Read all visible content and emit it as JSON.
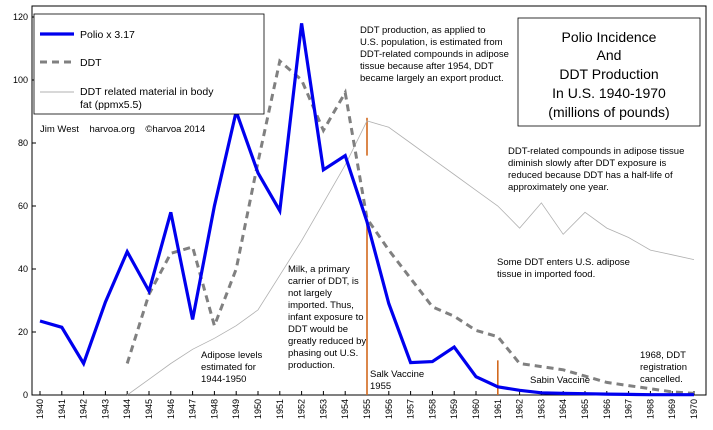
{
  "chart_data": {
    "type": "line",
    "title_lines": [
      "Polio Incidence",
      "And",
      "DDT Production",
      "In U.S. 1940-1970",
      "(millions of pounds)"
    ],
    "x": [
      1940,
      1941,
      1942,
      1943,
      1944,
      1945,
      1946,
      1947,
      1948,
      1949,
      1950,
      1951,
      1952,
      1953,
      1954,
      1955,
      1956,
      1957,
      1958,
      1959,
      1960,
      1961,
      1962,
      1963,
      1964,
      1965,
      1966,
      1967,
      1968,
      1969,
      1970
    ],
    "x_tick_labels": [
      "1940",
      "1941",
      "1942",
      "1943",
      "1944",
      "1945",
      "1946",
      "1947",
      "1948",
      "1949",
      "1950",
      "1951",
      "1952",
      "1953",
      "1954",
      "1955",
      "1956",
      "1957",
      "1958",
      "1959",
      "1960",
      "1961",
      "1962",
      "1963",
      "1964",
      "1965",
      "1966",
      "1967",
      "1968",
      "1969",
      "1970"
    ],
    "ylim": [
      0,
      120
    ],
    "y_ticks": [
      0,
      20,
      40,
      60,
      80,
      100,
      120
    ],
    "y_tick_labels": [
      "0",
      "20",
      "40",
      "60",
      "80",
      "100",
      "120"
    ],
    "series": [
      {
        "name": "Polio x 3.17",
        "color": "#0000ee",
        "style": "solid-thick",
        "x": [
          1940,
          1941,
          1942,
          1943,
          1944,
          1945,
          1946,
          1947,
          1948,
          1949,
          1950,
          1951,
          1952,
          1953,
          1954,
          1955,
          1956,
          1957,
          1958,
          1959,
          1960,
          1961,
          1962,
          1963,
          1964,
          1965,
          1966,
          1967,
          1968,
          1969,
          1970
        ],
        "values": [
          23.5,
          21.5,
          10,
          29.5,
          45.5,
          33,
          58,
          24,
          60,
          90,
          70.5,
          58.5,
          118,
          71.5,
          76,
          55,
          29,
          10.3,
          10.6,
          15.2,
          5.8,
          2.6,
          1.5,
          0.7,
          0.5,
          0.4,
          0.3,
          0.2,
          0.1,
          0.1,
          0.1
        ]
      },
      {
        "name": "DDT",
        "color": "#808080",
        "style": "dashed",
        "x": [
          1944,
          1945,
          1946,
          1947,
          1948,
          1949,
          1950,
          1951,
          1952,
          1953,
          1954,
          1955,
          1956,
          1957,
          1958,
          1959,
          1960,
          1961,
          1962,
          1963,
          1964,
          1965,
          1966,
          1967,
          1968,
          1969,
          1970
        ],
        "values": [
          10,
          32,
          45,
          47,
          22,
          40,
          74,
          106,
          100,
          84,
          96,
          56,
          46,
          37,
          28,
          25,
          20.5,
          18.5,
          10,
          9,
          8,
          6,
          4,
          3,
          2,
          1,
          0.5
        ]
      },
      {
        "name": "DDT related material in body fat (ppmx5.5)",
        "color": "#b0b0b0",
        "style": "thin",
        "x": [
          1944,
          1945,
          1946,
          1947,
          1948,
          1949,
          1950,
          1951,
          1952,
          1953,
          1954,
          1955,
          1956,
          1957,
          1958,
          1959,
          1960,
          1961,
          1962,
          1963,
          1964,
          1965,
          1966,
          1967,
          1968,
          1969,
          1970
        ],
        "values": [
          0,
          5,
          10,
          14.5,
          18,
          22,
          27,
          38,
          49,
          61,
          73,
          87,
          85,
          80,
          75,
          70,
          65,
          60,
          53,
          61,
          51,
          58,
          53,
          50,
          46,
          44.5,
          43
        ]
      }
    ],
    "legend": [
      {
        "label": "Polio x 3.17"
      },
      {
        "label": "DDT"
      },
      {
        "label_lines": [
          "DDT related material in body",
          "fat (ppmx5.5)"
        ]
      }
    ],
    "credit": "Jim West    harvoa.org    ©harvoa 2014",
    "markers": [
      {
        "x": 1955,
        "y_from": 76,
        "y_to": 88
      },
      {
        "x": 1955,
        "y_from": 0,
        "y_to": 56
      },
      {
        "x": 1961,
        "y_from": 0,
        "y_to": 11
      }
    ],
    "annotations": [
      {
        "id": "production",
        "lines": [
          "DDT production, as applied to",
          "U.S. population, is estimated from",
          "DDT-related compounds in adipose",
          "tissue because after 1954, DDT",
          "became largely an export product."
        ]
      },
      {
        "id": "halflife",
        "lines": [
          "DDT-related compounds in adipose tissue",
          "diminish slowly after DDT exposure is",
          "reduced because DDT has a half-life of",
          "approximately one year."
        ]
      },
      {
        "id": "imported",
        "lines": [
          "Some DDT enters U.S. adipose",
          "tissue in imported food."
        ]
      },
      {
        "id": "milk",
        "lines": [
          "Milk, a primary",
          "carrier of DDT, is",
          "not largely",
          "imported. Thus,",
          "infant exposure to",
          "DDT would be",
          "greatly reduced by",
          "phasing out U.S.",
          "production."
        ]
      },
      {
        "id": "adipose",
        "lines": [
          "Adipose levels",
          "estimated for",
          "1944-1950"
        ]
      },
      {
        "id": "salk",
        "lines": [
          "Salk Vaccine",
          "1955"
        ]
      },
      {
        "id": "sabin",
        "lines": [
          "Sabin Vaccine"
        ]
      },
      {
        "id": "cancel",
        "lines": [
          "1968, DDT",
          "registration",
          "cancelled."
        ]
      }
    ]
  }
}
